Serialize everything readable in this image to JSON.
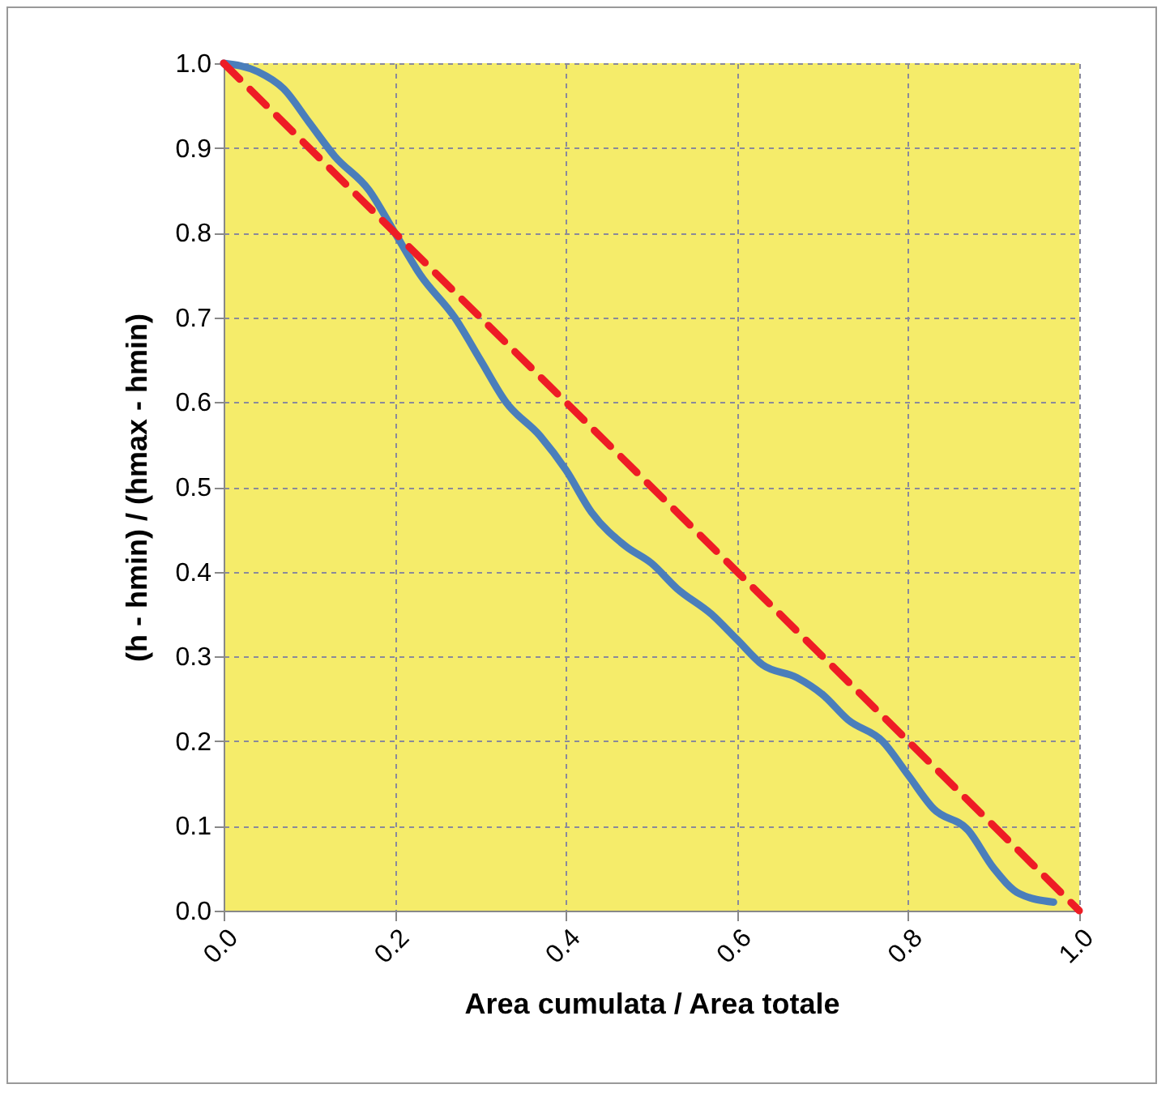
{
  "chart_data": {
    "type": "line",
    "xlabel": "Area cumulata / Area totale",
    "ylabel": "(h - hmin) / (hmax - hmin)",
    "xlim": [
      0,
      1
    ],
    "ylim": [
      0,
      1
    ],
    "xticks": [
      {
        "value": 0,
        "label": "0.0"
      },
      {
        "value": 0.2,
        "label": "0.2"
      },
      {
        "value": 0.4,
        "label": "0.4"
      },
      {
        "value": 0.6,
        "label": "0.6"
      },
      {
        "value": 0.8,
        "label": "0.8"
      },
      {
        "value": 1,
        "label": "1.0"
      }
    ],
    "yticks": [
      {
        "value": 0,
        "label": "0.0"
      },
      {
        "value": 0.1,
        "label": "0.1"
      },
      {
        "value": 0.2,
        "label": "0.2"
      },
      {
        "value": 0.3,
        "label": "0.3"
      },
      {
        "value": 0.4,
        "label": "0.4"
      },
      {
        "value": 0.5,
        "label": "0.5"
      },
      {
        "value": 0.6,
        "label": "0.6"
      },
      {
        "value": 0.7,
        "label": "0.7"
      },
      {
        "value": 0.8,
        "label": "0.8"
      },
      {
        "value": 0.9,
        "label": "0.9"
      },
      {
        "value": 1,
        "label": "1.0"
      }
    ],
    "grid": true,
    "marker": "none",
    "series": [
      {
        "color": "#4a7ebb",
        "line_style": "solid",
        "x": [
          0,
          0.04,
          0.07,
          0.1,
          0.13,
          0.17,
          0.2,
          0.23,
          0.27,
          0.3,
          0.33,
          0.37,
          0.4,
          0.43,
          0.47,
          0.5,
          0.53,
          0.57,
          0.6,
          0.63,
          0.67,
          0.7,
          0.73,
          0.77,
          0.8,
          0.83,
          0.87,
          0.9,
          0.93,
          0.97
        ],
        "values": [
          1,
          0.99,
          0.97,
          0.93,
          0.89,
          0.85,
          0.8,
          0.75,
          0.7,
          0.65,
          0.6,
          0.56,
          0.52,
          0.47,
          0.43,
          0.41,
          0.38,
          0.35,
          0.32,
          0.29,
          0.275,
          0.255,
          0.225,
          0.2,
          0.16,
          0.12,
          0.095,
          0.05,
          0.02,
          0.01
        ]
      },
      {
        "color": "#ee1c25",
        "line_style": "dashed",
        "x": [
          0,
          1
        ],
        "values": [
          1,
          0
        ]
      }
    ]
  }
}
